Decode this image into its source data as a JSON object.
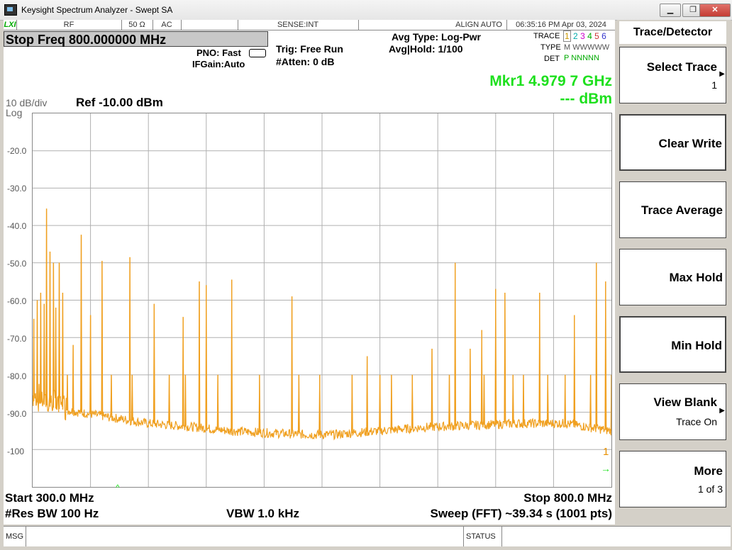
{
  "window": {
    "title": "Keysight Spectrum Analyzer - Swept SA"
  },
  "statusrow": {
    "lxi": "LXI",
    "rf": "RF",
    "impedance": "50 Ω",
    "coupling": "AC",
    "sense": "SENSE:INT",
    "align": "ALIGN AUTO",
    "datetime": "06:35:16 PM Apr 03, 2024"
  },
  "header": {
    "active_function": "Stop Freq 800.000000 MHz",
    "pno": "PNO: Fast",
    "ifgain": "IFGain:Auto",
    "trig": "Trig: Free Run",
    "atten": "#Atten: 0 dB",
    "avg_type": "Avg Type: Log-Pwr",
    "avg_hold": "Avg|Hold: 1/100",
    "trace_label": "TRACE",
    "type_label": "TYPE",
    "det_label": "DET",
    "trace_nums": [
      "1",
      "2",
      "3",
      "4",
      "5",
      "6"
    ],
    "trace_types": "M WWWWW",
    "trace_dets": "P NNNNN",
    "marker_freq": "Mkr1 4.979 7 GHz",
    "marker_amp": "--- dBm",
    "scale": "10 dB/div",
    "scale_type": "Log",
    "ref_level": "Ref -10.00 dBm"
  },
  "yaxis_labels": [
    "-20.0",
    "-30.0",
    "-40.0",
    "-50.0",
    "-60.0",
    "-70.0",
    "-80.0",
    "-90.0",
    "-100"
  ],
  "footer": {
    "start": "Start 300.0 MHz",
    "stop": "Stop 800.0 MHz",
    "rbw": "#Res BW 100 Hz",
    "vbw": "VBW 1.0 kHz",
    "sweep": "Sweep (FFT)  ~39.34 s (1001 pts)",
    "marker_number": "1"
  },
  "msgbar": {
    "msg": "MSG",
    "status": "STATUS"
  },
  "softkeys": {
    "menu_title": "Trace/Detector",
    "select_trace": "Select Trace",
    "select_trace_value": "1",
    "clear_write": "Clear Write",
    "trace_average": "Trace Average",
    "max_hold": "Max Hold",
    "min_hold": "Min Hold",
    "view_blank": "View Blank",
    "view_blank_value": "Trace On",
    "more": "More",
    "more_value": "1 of 3"
  },
  "colors": {
    "trace": "#f0a020",
    "marker_text": "#1ee01e",
    "grid": "#b0b0b0"
  },
  "chart_data": {
    "type": "line",
    "x_start_mhz": 300.0,
    "x_stop_mhz": 800.0,
    "ylim": [
      -110,
      -10
    ],
    "noise_floor_shape": [
      [
        300,
        -87
      ],
      [
        320,
        -89
      ],
      [
        340,
        -90
      ],
      [
        360,
        -91
      ],
      [
        380,
        -92
      ],
      [
        400,
        -93
      ],
      [
        420,
        -93.5
      ],
      [
        440,
        -94
      ],
      [
        470,
        -95
      ],
      [
        500,
        -95.5
      ],
      [
        540,
        -96
      ],
      [
        560,
        -96
      ],
      [
        600,
        -95
      ],
      [
        640,
        -94
      ],
      [
        680,
        -93.5
      ],
      [
        720,
        -93
      ],
      [
        760,
        -93
      ],
      [
        800,
        -95
      ]
    ],
    "spikes": [
      [
        301,
        -65
      ],
      [
        304,
        -60
      ],
      [
        307,
        -58
      ],
      [
        310,
        -61
      ],
      [
        312,
        -35.5
      ],
      [
        315,
        -47
      ],
      [
        318,
        -50
      ],
      [
        320,
        -62
      ],
      [
        323,
        -50
      ],
      [
        326,
        -58
      ],
      [
        330,
        -80
      ],
      [
        335,
        -72
      ],
      [
        342,
        -42.5
      ],
      [
        350,
        -64
      ],
      [
        360,
        -49.5
      ],
      [
        368,
        -80
      ],
      [
        384,
        -48.5
      ],
      [
        386,
        -80
      ],
      [
        405,
        -61
      ],
      [
        418,
        -80
      ],
      [
        430,
        -64.5
      ],
      [
        432,
        -80
      ],
      [
        444,
        -55
      ],
      [
        450,
        -56
      ],
      [
        460,
        -80
      ],
      [
        472,
        -54.5
      ],
      [
        496,
        -80
      ],
      [
        524,
        -59
      ],
      [
        530,
        -80
      ],
      [
        548,
        -80
      ],
      [
        576,
        -80
      ],
      [
        589,
        -75
      ],
      [
        600,
        -80
      ],
      [
        610,
        -80
      ],
      [
        628,
        -80
      ],
      [
        645,
        -73
      ],
      [
        660,
        -80
      ],
      [
        665,
        -50
      ],
      [
        678,
        -73
      ],
      [
        688,
        -68
      ],
      [
        690,
        -80
      ],
      [
        700,
        -57
      ],
      [
        708,
        -58
      ],
      [
        715,
        -80
      ],
      [
        724,
        -80
      ],
      [
        738,
        -58
      ],
      [
        745,
        -80
      ],
      [
        760,
        -80
      ],
      [
        768,
        -64
      ],
      [
        782,
        -80
      ],
      [
        787,
        -50
      ],
      [
        795,
        -55
      ],
      [
        800,
        -80
      ]
    ]
  }
}
